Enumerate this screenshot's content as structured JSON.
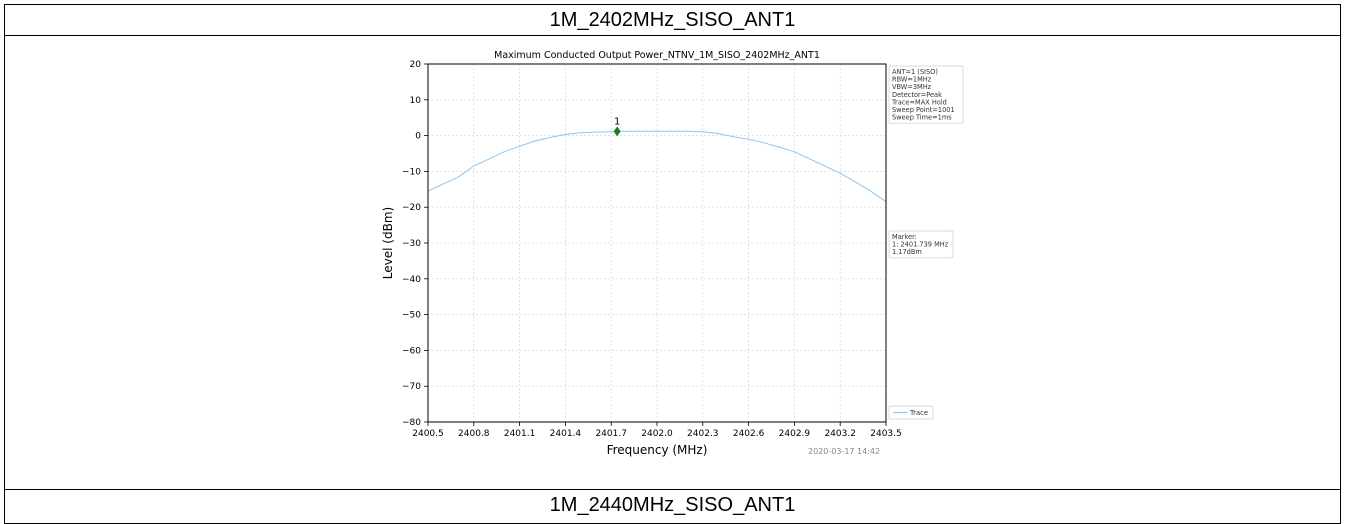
{
  "table": {
    "header_top": "1M_2402MHz_SISO_ANT1",
    "header_bottom": "1M_2440MHz_SISO_ANT1"
  },
  "chart_data": {
    "type": "line",
    "title": "Maximum Conducted Output Power_NTNV_1M_SISO_2402MHz_ANT1",
    "xlabel": "Frequency (MHz)",
    "ylabel": "Level (dBm)",
    "xlim": [
      2400.5,
      2403.5
    ],
    "ylim": [
      -80,
      20
    ],
    "x_ticks": [
      "2400.5",
      "2400.8",
      "2401.1",
      "2401.4",
      "2401.7",
      "2402.0",
      "2402.3",
      "2402.6",
      "2402.9",
      "2403.2",
      "2403.5"
    ],
    "y_ticks": [
      "20",
      "10",
      "0",
      "−10",
      "−20",
      "−30",
      "−40",
      "−50",
      "−60",
      "−70",
      "−80"
    ],
    "grid": true,
    "series": [
      {
        "name": "Trace",
        "color": "#8ec6f0",
        "x": [
          2400.5,
          2400.6,
          2400.7,
          2400.8,
          2400.9,
          2401.0,
          2401.1,
          2401.2,
          2401.3,
          2401.4,
          2401.5,
          2401.6,
          2401.7,
          2401.8,
          2401.9,
          2402.0,
          2402.1,
          2402.2,
          2402.3,
          2402.4,
          2402.5,
          2402.6,
          2402.7,
          2402.8,
          2402.9,
          2403.0,
          2403.1,
          2403.2,
          2403.3,
          2403.4,
          2403.5
        ],
        "y": [
          -15.5,
          -13.5,
          -11.5,
          -8.5,
          -6.5,
          -4.5,
          -3.0,
          -1.5,
          -0.5,
          0.3,
          0.8,
          1.0,
          1.1,
          1.2,
          1.2,
          1.2,
          1.2,
          1.2,
          1.1,
          0.6,
          -0.3,
          -1.0,
          -2.0,
          -3.2,
          -4.5,
          -6.5,
          -8.5,
          -10.5,
          -13.0,
          -15.5,
          -18.5
        ]
      }
    ],
    "marker": {
      "label": "1",
      "x": 2401.739,
      "y": 1.17,
      "color": "#1a7f1a"
    },
    "info_box": [
      "ANT=1 (SISO)",
      "RBW=1MHz",
      "VBW=3MHz",
      "Detector=Peak",
      "Trace=MAX Hold",
      "Sweep Point=1001",
      "Sweep Time=1ms"
    ],
    "marker_box": [
      "Marker:",
      "1: 2401.739 MHz",
      "    1.17dBm"
    ],
    "legend": {
      "label": "Trace",
      "position": "bottom-right"
    },
    "timestamp": "2020-03-17 14:42"
  }
}
